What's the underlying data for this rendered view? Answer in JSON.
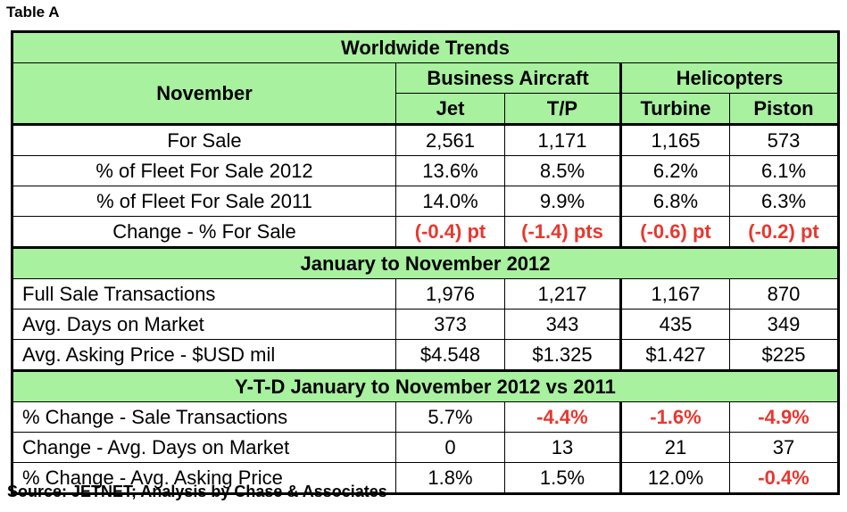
{
  "caption": "Table A",
  "title": "Worldwide Trends",
  "header": {
    "row_label": "November",
    "group_business": "Business Aircraft",
    "group_helicopters": "Helicopters",
    "col_jet": "Jet",
    "col_tp": "T/P",
    "col_turbine": "Turbine",
    "col_piston": "Piston"
  },
  "section1": {
    "rows": [
      {
        "label": "For Sale",
        "values": [
          "2,561",
          "1,171",
          "1,165",
          "573"
        ],
        "neg": [
          false,
          false,
          false,
          false
        ]
      },
      {
        "label": "% of Fleet For Sale 2012",
        "values": [
          "13.6%",
          "8.5%",
          "6.2%",
          "6.1%"
        ],
        "neg": [
          false,
          false,
          false,
          false
        ]
      },
      {
        "label": "% of Fleet For Sale 2011",
        "values": [
          "14.0%",
          "9.9%",
          "6.8%",
          "6.3%"
        ],
        "neg": [
          false,
          false,
          false,
          false
        ]
      },
      {
        "label": "Change - % For Sale",
        "values": [
          "(-0.4) pt",
          "(-1.4) pts",
          "(-0.6) pt",
          "(-0.2) pt"
        ],
        "neg": [
          true,
          true,
          true,
          true
        ]
      }
    ]
  },
  "section2": {
    "title": "January to November 2012",
    "rows": [
      {
        "label": "Full Sale Transactions",
        "values": [
          "1,976",
          "1,217",
          "1,167",
          "870"
        ],
        "neg": [
          false,
          false,
          false,
          false
        ]
      },
      {
        "label": "Avg. Days on Market",
        "values": [
          "373",
          "343",
          "435",
          "349"
        ],
        "neg": [
          false,
          false,
          false,
          false
        ]
      },
      {
        "label": "Avg. Asking Price - $USD mil",
        "values": [
          "$4.548",
          "$1.325",
          "$1.427",
          "$225"
        ],
        "neg": [
          false,
          false,
          false,
          false
        ]
      }
    ]
  },
  "section3": {
    "title": "Y-T-D January to November 2012 vs 2011",
    "rows": [
      {
        "label": "% Change  - Sale Transactions",
        "values": [
          "5.7%",
          "-4.4%",
          "-1.6%",
          "-4.9%"
        ],
        "neg": [
          false,
          true,
          true,
          true
        ]
      },
      {
        "label": "Change - Avg. Days on Market",
        "values": [
          "0",
          "13",
          "21",
          "37"
        ],
        "neg": [
          false,
          false,
          false,
          false
        ]
      },
      {
        "label": "% Change - Avg. Asking Price",
        "values": [
          "1.8%",
          "1.5%",
          "12.0%",
          "-0.4%"
        ],
        "neg": [
          false,
          false,
          false,
          true
        ]
      }
    ]
  },
  "source": "Source: JETNET; Analysis by Chase & Associates",
  "colors": {
    "header_bg": "#a8f19f",
    "negative": "#e8372f"
  }
}
